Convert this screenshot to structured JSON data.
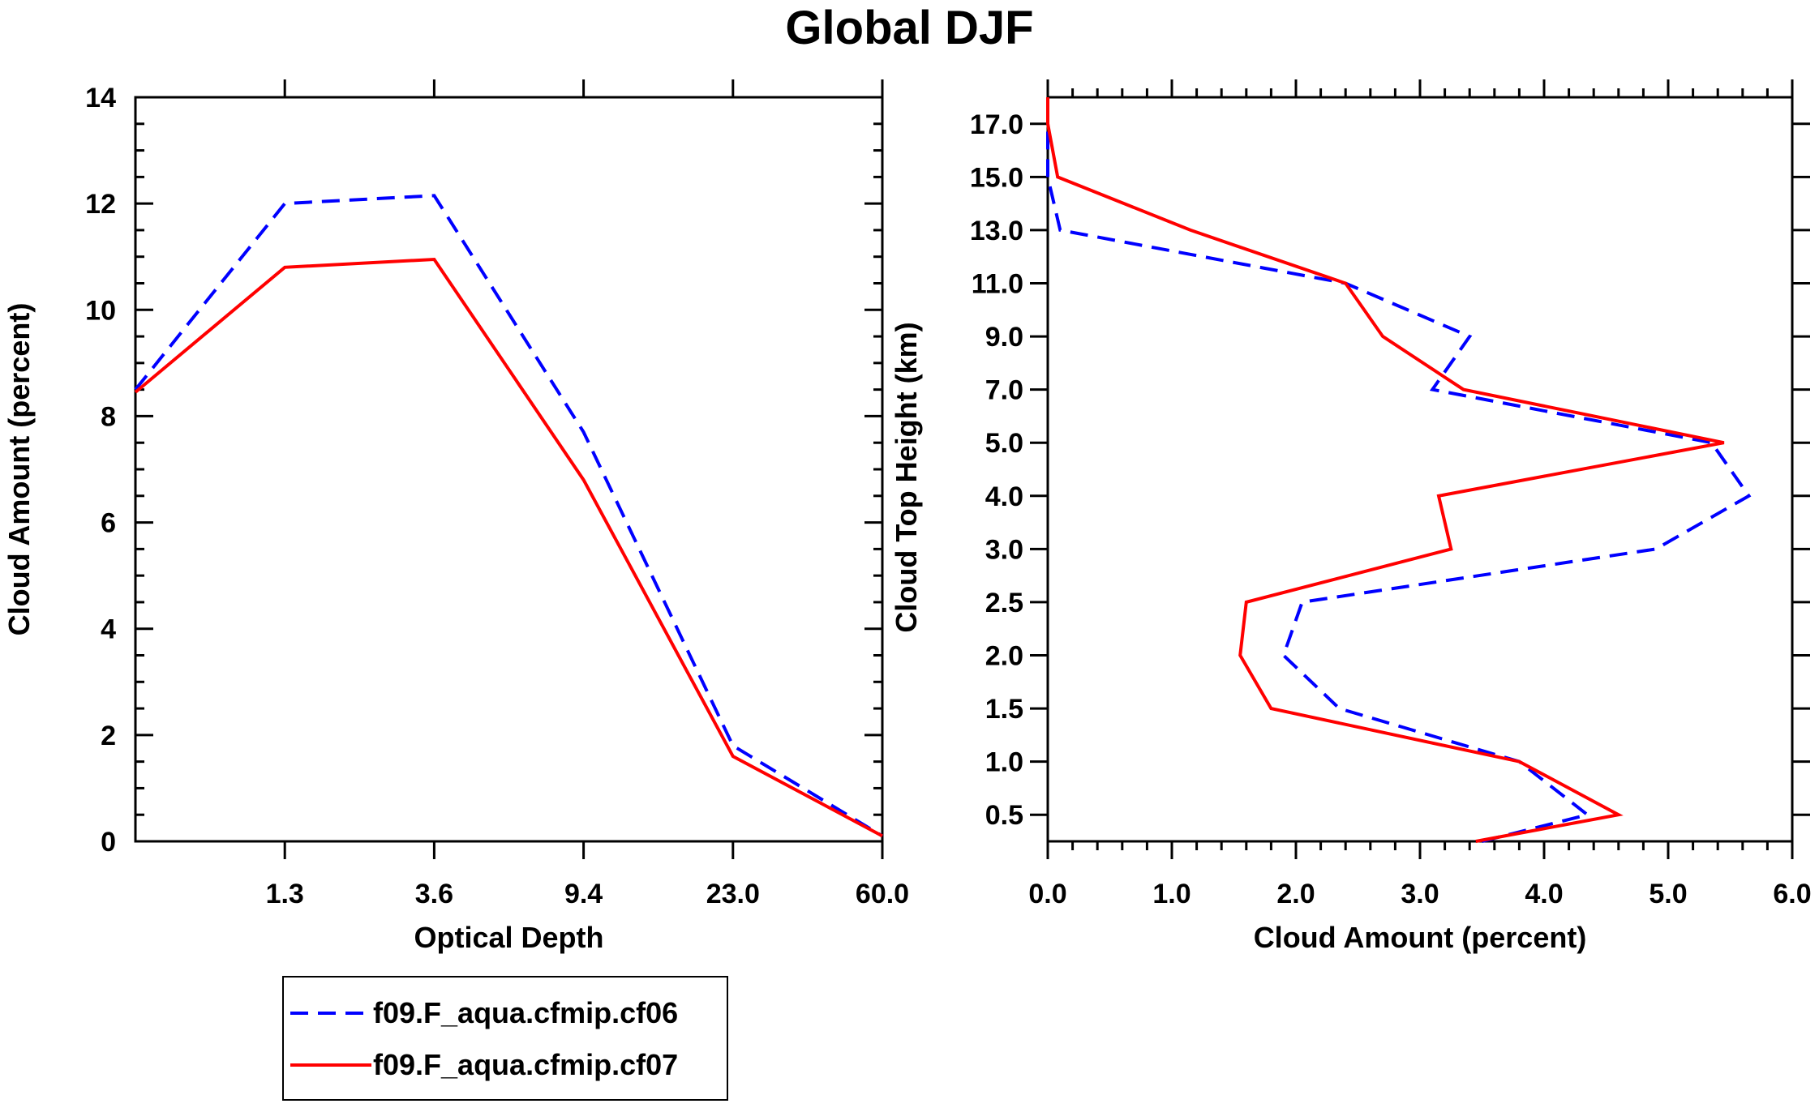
{
  "title": "Global DJF",
  "chart_data": [
    {
      "type": "line",
      "xlabel": "Optical Depth",
      "ylabel": "Cloud Amount (percent)",
      "x_tick_labels": [
        "1.3",
        "3.6",
        "9.4",
        "23.0",
        "60.0"
      ],
      "y_tick_labels": [
        "0",
        "2",
        "4",
        "6",
        "8",
        "10",
        "12",
        "14"
      ],
      "ylim": [
        0,
        14
      ],
      "x_bins": 5,
      "series": [
        {
          "name": "f09.F_aqua.cfmip.cf06",
          "color": "#0000ff",
          "dash": "dashed",
          "x": [
            0,
            1,
            2,
            3,
            4,
            5
          ],
          "values": [
            8.5,
            12.0,
            12.15,
            7.7,
            1.8,
            0.1
          ]
        },
        {
          "name": "f09.F_aqua.cfmip.cf07",
          "color": "#ff0000",
          "dash": "solid",
          "x": [
            0,
            1,
            2,
            3,
            4,
            5
          ],
          "values": [
            8.45,
            10.8,
            10.95,
            6.8,
            1.6,
            0.1
          ]
        }
      ]
    },
    {
      "type": "line",
      "orientation": "vertical-profile",
      "xlabel": "Cloud Amount (percent)",
      "ylabel": "Cloud Top Height (km)",
      "x_tick_labels": [
        "0.0",
        "1.0",
        "2.0",
        "3.0",
        "4.0",
        "5.0",
        "6.0"
      ],
      "xlim": [
        0,
        6
      ],
      "y_tick_labels": [
        "0.5",
        "1.0",
        "1.5",
        "2.0",
        "2.5",
        "3.0",
        "4.0",
        "5.0",
        "7.0",
        "9.0",
        "11.0",
        "13.0",
        "15.0",
        "17.0"
      ],
      "level_index_range": [
        0,
        14
      ],
      "series": [
        {
          "name": "f09.F_aqua.cfmip.cf06",
          "color": "#0000ff",
          "dash": "dashed",
          "level_index": [
            0,
            0.5,
            1.5,
            2.5,
            3.5,
            4.5,
            5.5,
            6.5,
            7.5,
            8.5,
            9.5,
            10.5,
            11.5,
            12.5,
            13.5,
            14
          ],
          "values": [
            3.5,
            4.35,
            3.8,
            2.35,
            1.9,
            2.05,
            4.9,
            5.65,
            5.35,
            3.1,
            3.4,
            2.4,
            0.1,
            0.0,
            0.0,
            0.0
          ]
        },
        {
          "name": "f09.F_aqua.cfmip.cf07",
          "color": "#ff0000",
          "dash": "solid",
          "level_index": [
            0,
            0.5,
            1.5,
            2.5,
            3.5,
            4.5,
            5.5,
            6.5,
            7.5,
            8.5,
            9.5,
            10.5,
            11.5,
            12.5,
            13.5,
            14
          ],
          "values": [
            3.45,
            4.6,
            3.8,
            1.8,
            1.55,
            1.6,
            3.25,
            3.15,
            5.45,
            3.35,
            2.7,
            2.4,
            1.15,
            0.08,
            0.0,
            0.0
          ]
        }
      ]
    }
  ],
  "legend": {
    "items": [
      {
        "label": "f09.F_aqua.cfmip.cf06",
        "color": "#0000ff",
        "dash": "dashed"
      },
      {
        "label": "f09.F_aqua.cfmip.cf07",
        "color": "#ff0000",
        "dash": "solid"
      }
    ]
  }
}
